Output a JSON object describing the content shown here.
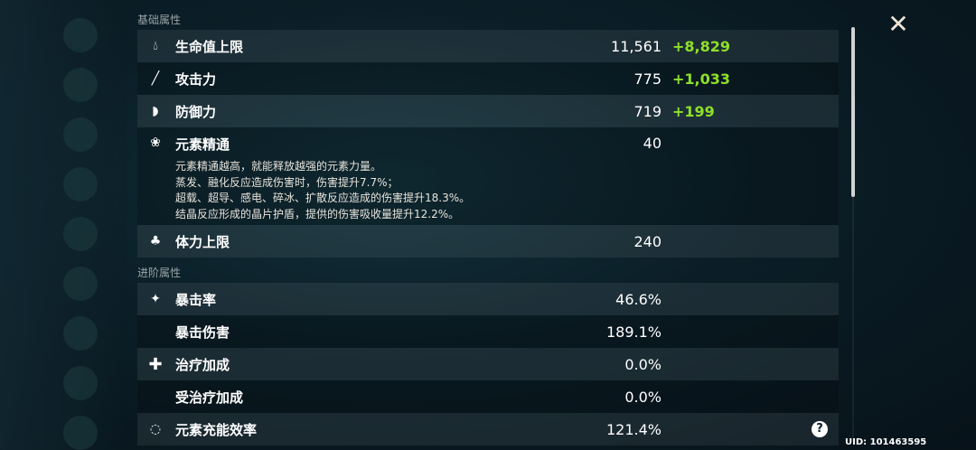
{
  "sections": {
    "basic": "基础属性",
    "advanced": "进阶属性"
  },
  "basic": [
    {
      "icon": "hp-drop-icon",
      "name": "生命值上限",
      "value": "11,561",
      "bonus": "+8,829"
    },
    {
      "icon": "sword-icon",
      "name": "攻击力",
      "value": "775",
      "bonus": "+1,033"
    },
    {
      "icon": "shield-icon",
      "name": "防御力",
      "value": "719",
      "bonus": "+199"
    },
    {
      "icon": "elemental-mastery-icon",
      "name": "元素精通",
      "value": "40"
    },
    {
      "icon": "stamina-icon",
      "name": "体力上限",
      "value": "240"
    }
  ],
  "mastery_desc": [
    "元素精通越高，就能释放越强的元素力量。",
    "蒸发、融化反应造成伤害时，伤害提升7.7%；",
    "超载、超导、感电、碎冰、扩散反应造成的伤害提升18.3%。",
    "结晶反应形成的晶片护盾，提供的伤害吸收量提升12.2%。"
  ],
  "advanced": [
    {
      "icon": "crit-icon",
      "name": "暴击率",
      "value": "46.6%"
    },
    {
      "icon": "",
      "name": "暴击伤害",
      "value": "189.1%"
    },
    {
      "icon": "heal-plus-icon",
      "name": "治疗加成",
      "value": "0.0%"
    },
    {
      "icon": "",
      "name": "受治疗加成",
      "value": "0.0%"
    },
    {
      "icon": "energy-recharge-icon",
      "name": "元素充能效率",
      "value": "121.4%"
    }
  ],
  "uid": "UID: 101463595",
  "colors": {
    "bonus": "#8ee02a"
  }
}
